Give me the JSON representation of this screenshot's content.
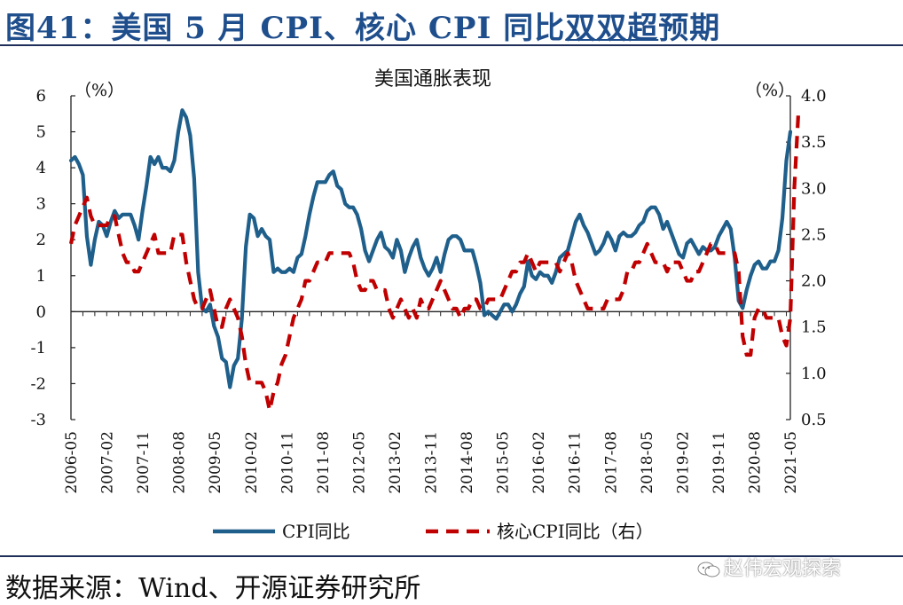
{
  "figure": {
    "title_prefix": "图41：",
    "title_main": "美国 5 月 CPI、核心 CPI 同比",
    "title_underlined": "双双超",
    "title_suffix": "预期",
    "source": "数据来源：Wind、开源证券研究所",
    "watermark": "赵伟宏观探索"
  },
  "chart_data": {
    "type": "line",
    "title": "美国通胀表现",
    "left_axis": {
      "unit_label": "（%）",
      "ylim": [
        -3,
        6
      ],
      "ticks": [
        6,
        5,
        4,
        3,
        2,
        1,
        0,
        -1,
        -2,
        -3
      ]
    },
    "right_axis": {
      "unit_label": "（%）",
      "ylim": [
        0.5,
        4.0
      ],
      "ticks": [
        "4.0",
        "3.5",
        "3.0",
        "2.5",
        "2.0",
        "1.5",
        "1.0",
        "0.5"
      ]
    },
    "x_tick_labels": [
      "2006-05",
      "2007-02",
      "2007-11",
      "2008-08",
      "2009-05",
      "2010-02",
      "2010-11",
      "2011-08",
      "2012-05",
      "2013-02",
      "2013-11",
      "2014-08",
      "2015-05",
      "2016-02",
      "2016-11",
      "2017-08",
      "2018-05",
      "2019-02",
      "2019-11",
      "2020-08",
      "2021-05"
    ],
    "x_start": "2006-05",
    "legend": [
      "CPI同比",
      "核心CPI同比（右）"
    ],
    "colors": {
      "cpi": "#1f5f8b",
      "core": "#c00000"
    },
    "series": [
      {
        "name": "CPI同比",
        "axis": "left",
        "values": [
          4.2,
          4.3,
          4.1,
          3.8,
          2.1,
          1.3,
          2.0,
          2.5,
          2.4,
          2.1,
          2.5,
          2.8,
          2.6,
          2.7,
          2.7,
          2.7,
          2.4,
          2.0,
          2.8,
          3.5,
          4.3,
          4.1,
          4.3,
          4.0,
          4.0,
          3.9,
          4.2,
          5.0,
          5.6,
          5.4,
          4.9,
          3.7,
          1.1,
          0.1,
          0.0,
          0.2,
          -0.4,
          -0.7,
          -1.3,
          -1.4,
          -2.1,
          -1.5,
          -1.3,
          -0.2,
          1.8,
          2.7,
          2.6,
          2.1,
          2.3,
          2.1,
          2.0,
          1.1,
          1.2,
          1.1,
          1.1,
          1.2,
          1.1,
          1.5,
          1.6,
          2.1,
          2.7,
          3.2,
          3.6,
          3.6,
          3.6,
          3.8,
          3.9,
          3.5,
          3.4,
          3.0,
          2.9,
          2.9,
          2.7,
          2.3,
          1.7,
          1.4,
          1.7,
          2.0,
          2.2,
          1.8,
          1.7,
          1.5,
          2.0,
          1.7,
          1.1,
          1.5,
          1.8,
          2.0,
          1.5,
          1.2,
          1.0,
          1.2,
          1.5,
          1.1,
          1.6,
          2.0,
          2.1,
          2.1,
          2.0,
          1.7,
          1.7,
          1.7,
          1.3,
          0.8,
          -0.1,
          0.0,
          -0.1,
          -0.2,
          0.0,
          0.2,
          0.2,
          0.0,
          0.2,
          0.5,
          0.7,
          1.4,
          1.0,
          0.9,
          1.1,
          1.0,
          1.0,
          0.8,
          1.1,
          1.5,
          1.6,
          1.7,
          2.1,
          2.5,
          2.7,
          2.4,
          2.2,
          1.9,
          1.6,
          1.7,
          1.9,
          2.2,
          2.0,
          1.7,
          2.1,
          2.2,
          2.1,
          2.1,
          2.2,
          2.4,
          2.5,
          2.8,
          2.9,
          2.9,
          2.7,
          2.3,
          2.5,
          2.2,
          1.9,
          1.6,
          1.5,
          1.9,
          2.0,
          1.8,
          1.6,
          1.8,
          1.7,
          1.7,
          1.8,
          2.1,
          2.3,
          2.5,
          2.3,
          1.5,
          0.3,
          0.1,
          0.6,
          1.0,
          1.3,
          1.4,
          1.2,
          1.2,
          1.4,
          1.4,
          1.7,
          2.6,
          4.2,
          5.0
        ]
      },
      {
        "name": "核心CPI同比（右）",
        "axis": "right",
        "values": [
          2.4,
          2.6,
          2.7,
          2.8,
          2.9,
          2.7,
          2.6,
          2.6,
          2.6,
          2.6,
          2.7,
          2.7,
          2.5,
          2.3,
          2.2,
          2.2,
          2.1,
          2.1,
          2.2,
          2.3,
          2.4,
          2.5,
          2.3,
          2.3,
          2.3,
          2.3,
          2.5,
          2.5,
          2.5,
          2.2,
          2.0,
          1.8,
          1.7,
          1.7,
          1.8,
          1.9,
          1.7,
          1.5,
          1.5,
          1.7,
          1.8,
          1.7,
          1.6,
          1.4,
          1.1,
          0.9,
          0.9,
          0.9,
          0.9,
          0.8,
          0.6,
          0.8,
          0.9,
          1.1,
          1.2,
          1.4,
          1.6,
          1.7,
          1.8,
          2.0,
          2.0,
          2.1,
          2.2,
          2.2,
          2.2,
          2.3,
          2.3,
          2.3,
          2.3,
          2.3,
          2.3,
          2.2,
          2.0,
          1.9,
          1.9,
          2.0,
          2.0,
          1.9,
          1.9,
          1.9,
          1.7,
          1.6,
          1.7,
          1.8,
          1.7,
          1.6,
          1.7,
          1.6,
          1.8,
          1.7,
          1.7,
          1.8,
          1.9,
          2.0,
          1.9,
          1.8,
          1.7,
          1.7,
          1.6,
          1.7,
          1.7,
          1.8,
          1.8,
          1.7,
          1.7,
          1.8,
          1.8,
          1.8,
          1.8,
          1.9,
          2.0,
          2.1,
          2.1,
          2.2,
          2.2,
          2.3,
          2.2,
          2.1,
          2.2,
          2.2,
          2.2,
          2.2,
          2.2,
          2.1,
          2.2,
          2.3,
          2.2,
          2.0,
          1.9,
          1.8,
          1.7,
          1.7,
          1.7,
          1.7,
          1.7,
          1.8,
          1.8,
          1.8,
          1.8,
          1.9,
          2.1,
          2.1,
          2.2,
          2.2,
          2.3,
          2.4,
          2.3,
          2.2,
          2.2,
          2.2,
          2.1,
          2.2,
          2.2,
          2.2,
          2.1,
          2.0,
          2.0,
          2.1,
          2.1,
          2.2,
          2.3,
          2.4,
          2.4,
          2.3,
          2.3,
          2.3,
          2.3,
          2.3,
          2.1,
          1.4,
          1.2,
          1.2,
          1.6,
          1.7,
          1.7,
          1.6,
          1.6,
          1.6,
          1.6,
          1.4,
          1.3,
          1.6,
          3.0,
          3.8
        ]
      }
    ],
    "grid": false,
    "legend_position": "bottom"
  }
}
